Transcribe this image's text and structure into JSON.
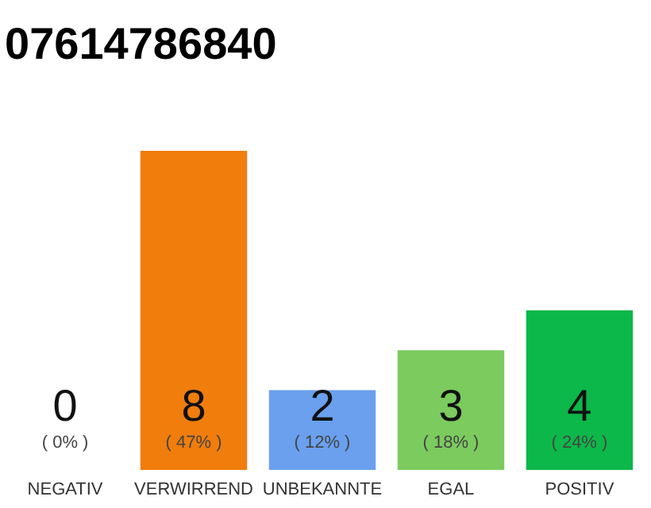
{
  "chart_data": {
    "type": "bar",
    "title": "07614786840",
    "categories": [
      "NEGATIV",
      "VERWIRREND",
      "UNBEKANNTE",
      "EGAL",
      "POSITIV"
    ],
    "values": [
      0,
      8,
      2,
      3,
      4
    ],
    "colors": [
      "#e8253f",
      "#f07d0c",
      "#6aa0ee",
      "#7ccb5e",
      "#0cb849"
    ],
    "data_labels": true,
    "annotations": [
      "( 0% )",
      "( 47% )",
      "( 12% )",
      "( 18% )",
      "( 24% )"
    ],
    "ylim": [
      0,
      8
    ],
    "tick_labels": "x"
  }
}
